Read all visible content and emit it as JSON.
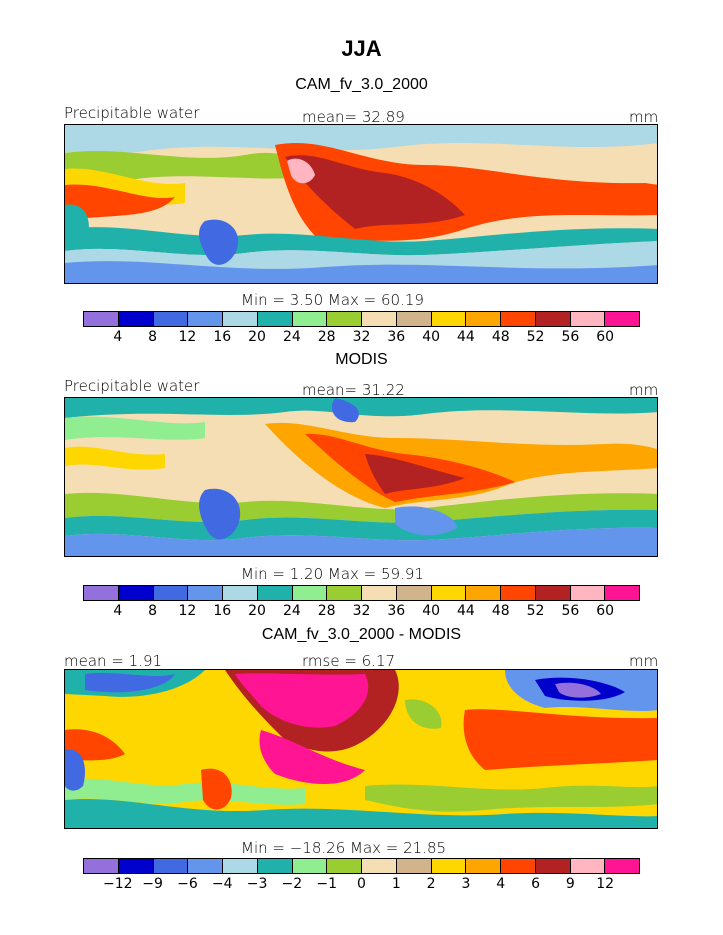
{
  "season": "JJA",
  "panels": [
    {
      "title": "CAM_fv_3.0_2000",
      "left_label": "Precipitable water",
      "center_label": "mean=   32.89",
      "units": "mm",
      "minmax": "Min =     3.50  Max =   60.19",
      "ticks": [
        "4",
        "8",
        "12",
        "16",
        "20",
        "24",
        "28",
        "32",
        "36",
        "40",
        "44",
        "48",
        "52",
        "56",
        "60"
      ]
    },
    {
      "title": "MODIS",
      "left_label": "Precipitable water",
      "center_label": "mean=   31.22",
      "units": "mm",
      "minmax": "Min =     1.20  Max =   59.91",
      "ticks": [
        "4",
        "8",
        "12",
        "16",
        "20",
        "24",
        "28",
        "32",
        "36",
        "40",
        "44",
        "48",
        "52",
        "56",
        "60"
      ]
    },
    {
      "title": "CAM_fv_3.0_2000 - MODIS",
      "left_label": "mean =     1.91",
      "center_label": "rmse =     6.17",
      "units": "mm",
      "minmax": "Min = −18.26  Max =   21.85",
      "ticks": [
        "−12",
        "−9",
        "−6",
        "−4",
        "−3",
        "−2",
        "−1",
        "0",
        "1",
        "2",
        "3",
        "4",
        "6",
        "9",
        "12"
      ]
    }
  ],
  "colors": {
    "levels": [
      "#9370db",
      "#0000cd",
      "#4169e1",
      "#6495ed",
      "#add8e6",
      "#20b2aa",
      "#90ee90",
      "#9acd32",
      "#f5deb3",
      "#d2b48c",
      "#ffd700",
      "#ffa500",
      "#ff4500",
      "#b22222",
      "#ffb6c1",
      "#ff1493"
    ]
  }
}
